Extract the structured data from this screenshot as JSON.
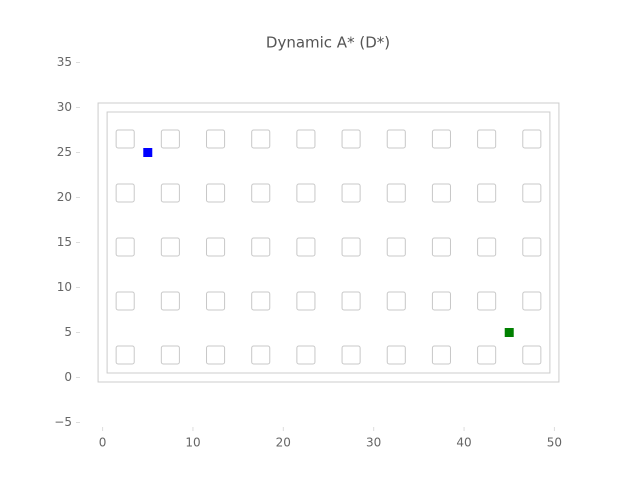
{
  "chart_data": {
    "type": "scatter",
    "title": "Dynamic A* (D*)",
    "xlim": [
      -2.5,
      52.5
    ],
    "ylim": [
      -5.5,
      35.5
    ],
    "xticks": [
      0,
      10,
      20,
      30,
      40,
      50
    ],
    "yticks": [
      {
        "value": -5,
        "label": "−5"
      },
      0,
      5,
      10,
      15,
      20,
      25,
      30,
      35
    ],
    "boundary": {
      "outer": [
        -0.5,
        50.5,
        -0.5,
        30.5
      ],
      "inner": [
        0.5,
        49.5,
        0.5,
        29.5
      ]
    },
    "obstacles": {
      "size": 2,
      "color": "#c8c8c8",
      "x": [
        2.5,
        7.5,
        12.5,
        17.5,
        22.5,
        27.5,
        32.5,
        37.5,
        42.5,
        47.5,
        2.5,
        7.5,
        12.5,
        17.5,
        22.5,
        27.5,
        32.5,
        37.5,
        42.5,
        47.5,
        2.5,
        7.5,
        12.5,
        17.5,
        22.5,
        27.5,
        32.5,
        37.5,
        42.5,
        47.5,
        2.5,
        7.5,
        12.5,
        17.5,
        22.5,
        27.5,
        32.5,
        37.5,
        42.5,
        47.5,
        2.5,
        7.5,
        12.5,
        17.5,
        22.5,
        27.5,
        32.5,
        37.5,
        42.5,
        47.5
      ],
      "y": [
        2.5,
        2.5,
        2.5,
        2.5,
        2.5,
        2.5,
        2.5,
        2.5,
        2.5,
        2.5,
        8.5,
        8.5,
        8.5,
        8.5,
        8.5,
        8.5,
        8.5,
        8.5,
        8.5,
        8.5,
        14.5,
        14.5,
        14.5,
        14.5,
        14.5,
        14.5,
        14.5,
        14.5,
        14.5,
        14.5,
        20.5,
        20.5,
        20.5,
        20.5,
        20.5,
        20.5,
        20.5,
        20.5,
        20.5,
        20.5,
        26.5,
        26.5,
        26.5,
        26.5,
        26.5,
        26.5,
        26.5,
        26.5,
        26.5,
        26.5
      ]
    },
    "points": [
      {
        "x": 5,
        "y": 25,
        "color": "#0000ff"
      },
      {
        "x": 45,
        "y": 5,
        "color": "#008000"
      }
    ]
  }
}
